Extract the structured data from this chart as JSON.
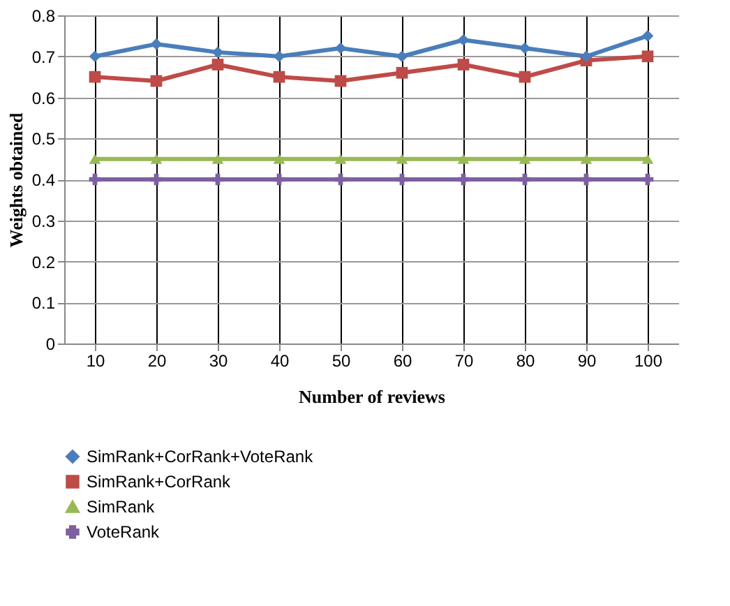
{
  "chart_data": {
    "type": "line",
    "xlabel": "Number of reviews",
    "ylabel": "Weights obtained",
    "categories": [
      "10",
      "20",
      "30",
      "40",
      "50",
      "60",
      "70",
      "80",
      "90",
      "100"
    ],
    "series": [
      {
        "name": "SimRank+CorRank+VoteRank",
        "color": "#4a7ebb",
        "marker": "diamond",
        "values": [
          0.7,
          0.73,
          0.71,
          0.7,
          0.72,
          0.7,
          0.74,
          0.72,
          0.7,
          0.75
        ]
      },
      {
        "name": "SimRank+CorRank",
        "color": "#be4b48",
        "marker": "square",
        "values": [
          0.65,
          0.64,
          0.68,
          0.65,
          0.64,
          0.66,
          0.68,
          0.65,
          0.69,
          0.7
        ]
      },
      {
        "name": "SimRank",
        "color": "#98b954",
        "marker": "triangle",
        "values": [
          0.45,
          0.45,
          0.45,
          0.45,
          0.45,
          0.45,
          0.45,
          0.45,
          0.45,
          0.45
        ]
      },
      {
        "name": "VoteRank",
        "color": "#7d60a0",
        "marker": "cross",
        "values": [
          0.4,
          0.4,
          0.4,
          0.4,
          0.4,
          0.4,
          0.4,
          0.4,
          0.4,
          0.4
        ]
      }
    ],
    "ylim": [
      0,
      0.8
    ],
    "yticks": [
      0,
      0.1,
      0.2,
      0.3,
      0.4,
      0.5,
      0.6,
      0.7,
      0.8
    ],
    "grid": true,
    "legend": "bottom",
    "line_style": "solid"
  }
}
